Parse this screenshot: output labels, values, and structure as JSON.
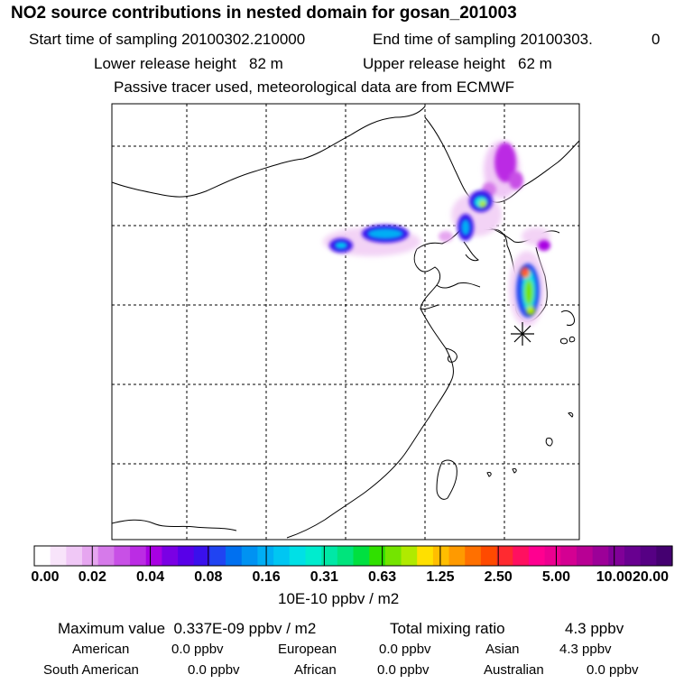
{
  "header": {
    "title": "NO2 source contributions in nested domain for gosan_201003",
    "start_label": "Start time of sampling 20100302.210000",
    "end_label": "End time of sampling 20100303.",
    "end_value": "0",
    "lower_height": "Lower release height   82 m",
    "upper_height": "Upper release height   62 m",
    "tracer_note": "Passive tracer used, meteorological data are from ECMWF"
  },
  "colorbar": {
    "ticks": [
      "0.00",
      "0.02",
      "0.04",
      "0.08",
      "0.16",
      "0.31",
      "0.63",
      "1.25",
      "2.50",
      "5.00",
      "10.00",
      "20.00"
    ],
    "colors": [
      "#ffffff",
      "#f8e4fa",
      "#f0c8f6",
      "#e6a6f0",
      "#d67aea",
      "#c850e6",
      "#bb2ce4",
      "#a800e2",
      "#7a00e4",
      "#5800e8",
      "#3a10ec",
      "#2044f2",
      "#0070f0",
      "#0092f2",
      "#00aef4",
      "#00c6f2",
      "#00e0e6",
      "#00ecce",
      "#00e8a6",
      "#00e47c",
      "#00e040",
      "#30e000",
      "#74e400",
      "#b0ea00",
      "#ffe000",
      "#ffbe00",
      "#ff9a00",
      "#ff7000",
      "#ff4a00",
      "#ff2a30",
      "#ff1060",
      "#ff0090",
      "#ec0090",
      "#d40092",
      "#b80094",
      "#9c0098",
      "#800098",
      "#680090",
      "#560084",
      "#440070"
    ],
    "unit_label": "10E-10 ppbv / m2"
  },
  "summary": {
    "max_label": "Maximum value  0.337E-09 ppbv / m2",
    "total_label": "Total mixing ratio",
    "total_value": "4.3 ppbv",
    "regions": [
      {
        "name": "American",
        "value": "0.0 ppbv"
      },
      {
        "name": "European",
        "value": "0.0 ppbv"
      },
      {
        "name": "Asian",
        "value": "4.3 ppbv"
      },
      {
        "name": "South American",
        "value": "0.0 ppbv"
      },
      {
        "name": "African",
        "value": "0.0 ppbv"
      },
      {
        "name": "Australian",
        "value": "0.0 ppbv"
      }
    ]
  },
  "receptor_marker": "asterisk-marker"
}
